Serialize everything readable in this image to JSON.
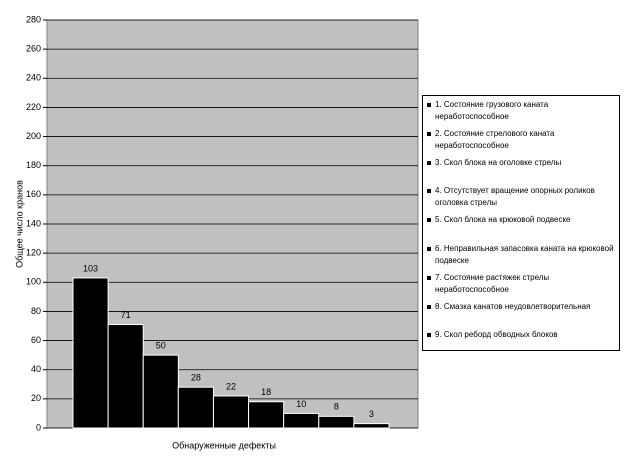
{
  "chart_data": {
    "type": "bar",
    "x_label": "Обнаруженные дефекты",
    "y_label": "Общее число кранов",
    "categories": [
      "1. Состояние грузового каната неработоспособное",
      "2. Состояние стрелового каната неработоспособное",
      "3. Скол блока на оголовке стрелы",
      "4. Отсутствует вращение опорных роликов оголовка стрелы",
      "5. Скол блока на крюковой подвеске",
      "6. Неправильная запасовка каната на крюковой подвеске",
      "7. Состояние растяжек стрелы неработоспособное",
      "8. Смазка канатов неудовлетворительная",
      "9. Скол реборд обводных блоков"
    ],
    "values": [
      103,
      71,
      50,
      28,
      22,
      18,
      10,
      8,
      3
    ],
    "color": "#000000",
    "ylim": [
      0,
      280
    ],
    "yticks": [
      0,
      20,
      40,
      60,
      80,
      100,
      120,
      140,
      160,
      180,
      200,
      220,
      240,
      260,
      280
    ],
    "grid": true,
    "legend": "right"
  }
}
